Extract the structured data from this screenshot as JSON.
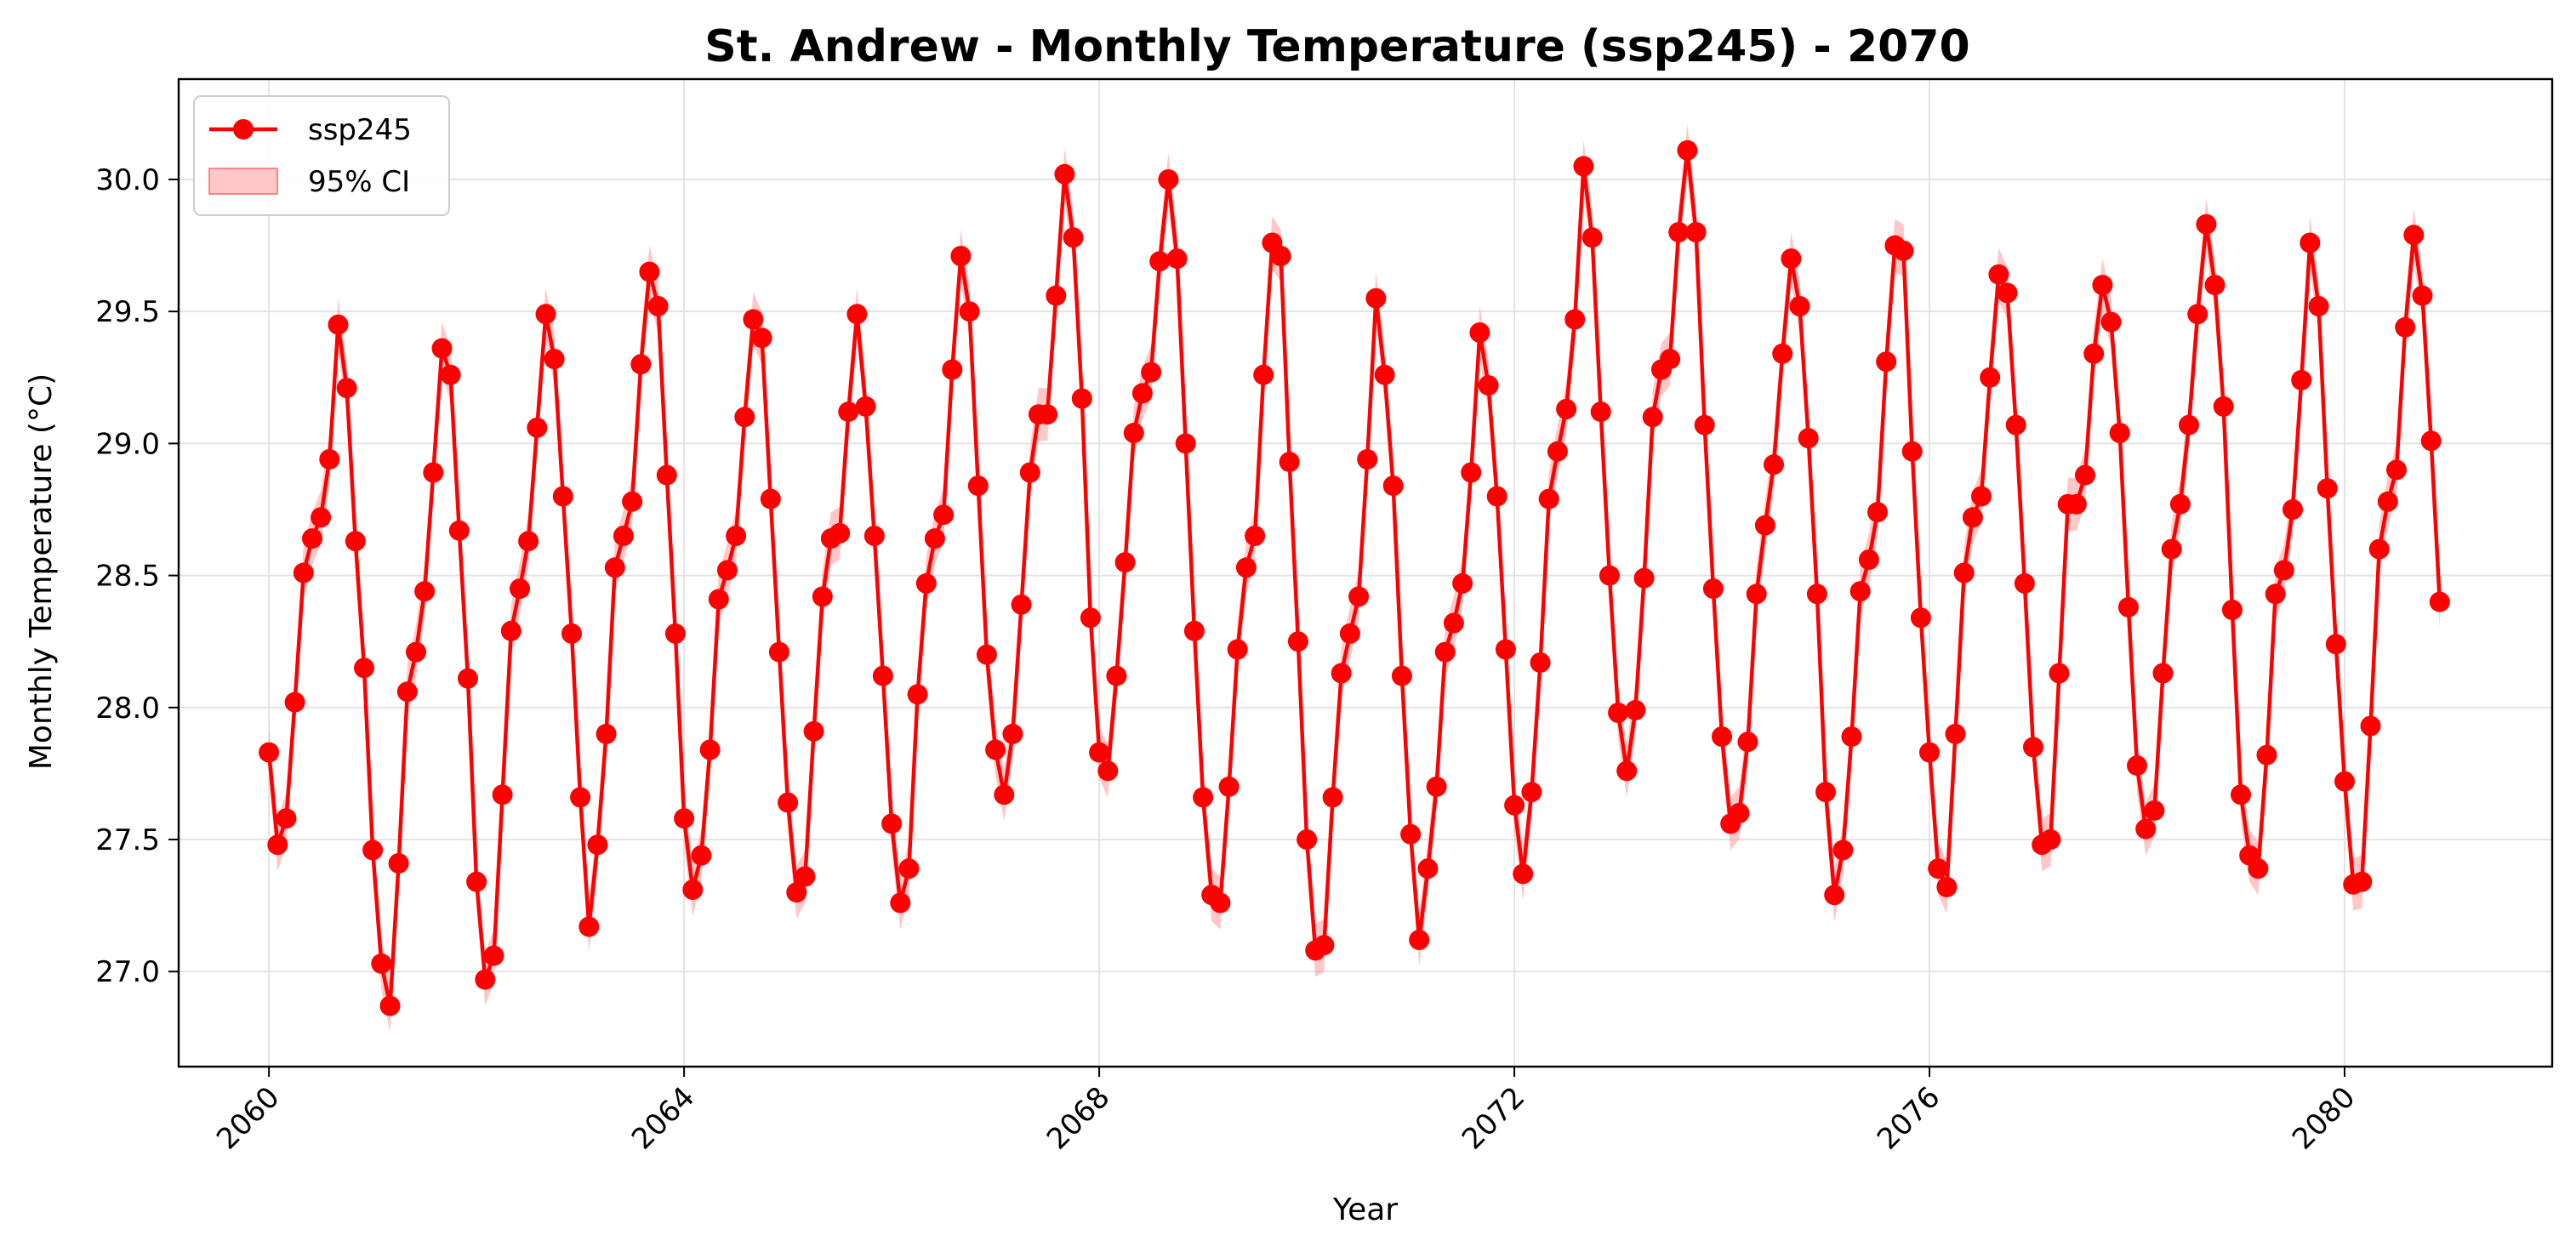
{
  "chart_data": {
    "type": "line",
    "title": "St. Andrew - Monthly Temperature (ssp245) - 2070",
    "xlabel": "Year",
    "ylabel": "Monthly Temperature (°C)",
    "xlim": [
      2059.13,
      2082.0
    ],
    "ylim": [
      26.64,
      30.38
    ],
    "x_ticks": [
      2060,
      2064,
      2068,
      2072,
      2076,
      2080
    ],
    "x_tick_labels": [
      "2060",
      "2064",
      "2068",
      "2072",
      "2076",
      "2080"
    ],
    "y_ticks": [
      27.0,
      27.5,
      28.0,
      28.5,
      29.0,
      29.5,
      30.0
    ],
    "y_tick_labels": [
      "27.0",
      "27.5",
      "28.0",
      "28.5",
      "29.0",
      "29.5",
      "30.0"
    ],
    "grid": true,
    "legend_position": "top-left",
    "legend": [
      {
        "label": "ssp245",
        "kind": "line-marker"
      },
      {
        "label": "95% CI",
        "kind": "band"
      }
    ],
    "colors": {
      "series": "#ff0000",
      "band": "#ff9999"
    },
    "ci_halfwidth": 0.1,
    "series": [
      {
        "name": "ssp245",
        "start_year": 2060,
        "values_by_year": [
          [
            27.83,
            27.48,
            27.58,
            28.02,
            28.51,
            28.64,
            28.72,
            28.94,
            29.45,
            29.21,
            28.63,
            28.15
          ],
          [
            27.46,
            27.03,
            26.87,
            27.41,
            28.06,
            28.21,
            28.44,
            28.89,
            29.36,
            29.26,
            28.67,
            28.11
          ],
          [
            27.34,
            26.97,
            27.06,
            27.67,
            28.29,
            28.45,
            28.63,
            29.06,
            29.49,
            29.32,
            28.8,
            28.28
          ],
          [
            27.66,
            27.17,
            27.48,
            27.9,
            28.53,
            28.65,
            28.78,
            29.3,
            29.65,
            29.52,
            28.88,
            28.28
          ],
          [
            27.58,
            27.31,
            27.44,
            27.84,
            28.41,
            28.52,
            28.65,
            29.1,
            29.47,
            29.4,
            28.79,
            28.21
          ],
          [
            27.64,
            27.3,
            27.36,
            27.91,
            28.42,
            28.64,
            28.66,
            29.12,
            29.49,
            29.14,
            28.65,
            28.12
          ],
          [
            27.56,
            27.26,
            27.39,
            28.05,
            28.47,
            28.64,
            28.73,
            29.28,
            29.71,
            29.5,
            28.84,
            28.2
          ],
          [
            27.84,
            27.67,
            27.9,
            28.39,
            28.89,
            29.11,
            29.11,
            29.56,
            30.02,
            29.78,
            29.17,
            28.34
          ],
          [
            27.83,
            27.76,
            28.12,
            28.55,
            29.04,
            29.19,
            29.27,
            29.69,
            30.0,
            29.7,
            29.0,
            28.29
          ],
          [
            27.66,
            27.29,
            27.26,
            27.7,
            28.22,
            28.53,
            28.65,
            29.26,
            29.76,
            29.71,
            28.93,
            28.25
          ],
          [
            27.5,
            27.08,
            27.1,
            27.66,
            28.13,
            28.28,
            28.42,
            28.94,
            29.55,
            29.26,
            28.84,
            28.12
          ],
          [
            27.52,
            27.12,
            27.39,
            27.7,
            28.21,
            28.32,
            28.47,
            28.89,
            29.42,
            29.22,
            28.8,
            28.22
          ],
          [
            27.63,
            27.37,
            27.68,
            28.17,
            28.79,
            28.97,
            29.13,
            29.47,
            30.05,
            29.78,
            29.12,
            28.5
          ],
          [
            27.98,
            27.76,
            27.99,
            28.49,
            29.1,
            29.28,
            29.32,
            29.8,
            30.11,
            29.8,
            29.07,
            28.45
          ],
          [
            27.89,
            27.56,
            27.6,
            27.87,
            28.43,
            28.69,
            28.92,
            29.34,
            29.7,
            29.52,
            29.02,
            28.43
          ],
          [
            27.68,
            27.29,
            27.46,
            27.89,
            28.44,
            28.56,
            28.74,
            29.31,
            29.75,
            29.73,
            28.97,
            28.34
          ],
          [
            27.83,
            27.39,
            27.32,
            27.9,
            28.51,
            28.72,
            28.8,
            29.25,
            29.64,
            29.57,
            29.07,
            28.47
          ],
          [
            27.85,
            27.48,
            27.5,
            28.13,
            28.77,
            28.77,
            28.88,
            29.34,
            29.6,
            29.46,
            29.04,
            28.38
          ],
          [
            27.78,
            27.54,
            27.61,
            28.13,
            28.6,
            28.77,
            29.07,
            29.49,
            29.83,
            29.6,
            29.14,
            28.37
          ],
          [
            27.67,
            27.44,
            27.39,
            27.82,
            28.43,
            28.52,
            28.75,
            29.24,
            29.76,
            29.52,
            28.83,
            28.24
          ],
          [
            27.72,
            27.33,
            27.34,
            27.93,
            28.6,
            28.78,
            28.9,
            29.44,
            29.79,
            29.56,
            29.01,
            28.4
          ]
        ]
      }
    ]
  }
}
